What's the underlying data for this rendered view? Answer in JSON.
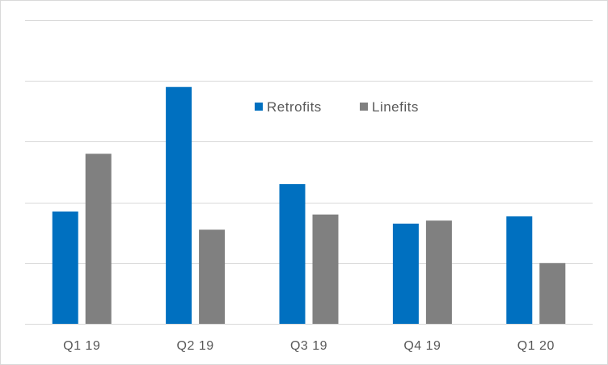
{
  "chart_data": {
    "type": "bar",
    "title": "",
    "xlabel": "",
    "ylabel": "",
    "categories": [
      "Q1 19",
      "Q2 19",
      "Q3 19",
      "Q4 19",
      "Q1 20"
    ],
    "series": [
      {
        "name": "Retrofits",
        "color": "#0070c0",
        "values": [
          1.85,
          3.9,
          2.3,
          1.65,
          1.77
        ]
      },
      {
        "name": "Linefits",
        "color": "#808080",
        "values": [
          2.8,
          1.55,
          1.8,
          1.7,
          1.0
        ]
      }
    ],
    "ylim": [
      0,
      5
    ],
    "grid": true,
    "y_tick_labels_shown": false,
    "legend_position": "top-center",
    "gridline_color": "#d9d9d9",
    "axis_color": "#d9d9d9"
  }
}
